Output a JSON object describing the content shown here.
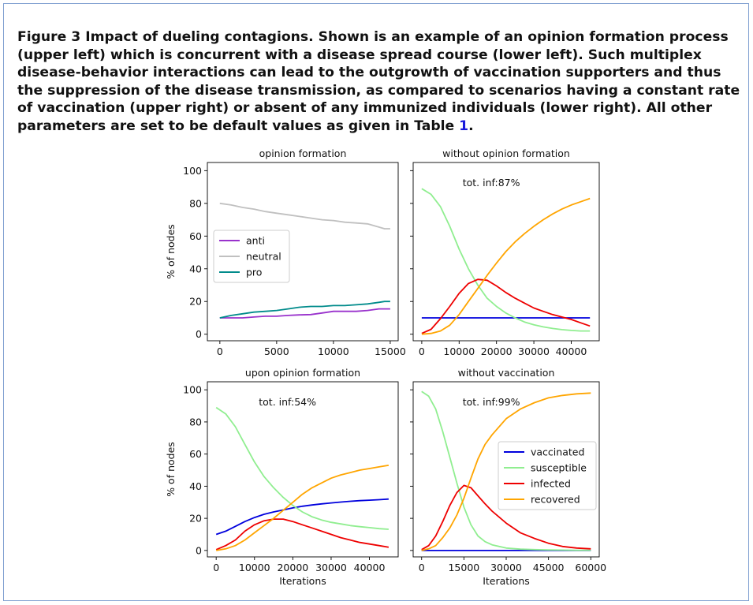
{
  "caption": {
    "prefix": "Figure 3 Impact of dueling contagions. Shown is an example of an opinion formation process (upper left) which is concurrent with a disease spread course (lower left). Such multiplex disease-behavior interactions can lead to the outgrowth of vaccination supporters and thus the suppression of the disease transmission, as compared to scenarios having a constant rate of vaccination (upper right) or absent of any immunized individuals (lower right). All other parameters are set to be default values as given in Table ",
    "ref": "1",
    "suffix": "."
  },
  "colors": {
    "anti": "#9932cc",
    "neutral": "#c0c0c0",
    "pro": "#008b8b",
    "vaccinated": "#0000dd",
    "susceptible": "#90ee90",
    "infected": "#ee0000",
    "recovered": "#ffa500"
  },
  "chart_data": [
    {
      "id": "tl",
      "type": "line",
      "title": "opinion formation",
      "xlabel": "",
      "ylabel": "% of nodes",
      "xlim": [
        -1100,
        15700
      ],
      "ylim": [
        -4,
        105
      ],
      "xticks": [
        0,
        5000,
        10000,
        15000
      ],
      "xtick_labels": [
        "0",
        "5000",
        "10000",
        "15000"
      ],
      "yticks": [
        0,
        20,
        40,
        60,
        80,
        100
      ],
      "ytick_labels": [
        "0",
        "20",
        "40",
        "60",
        "80",
        "100"
      ],
      "show_yticklabels": true,
      "annotation": "",
      "legend": {
        "position": "center-left",
        "entries": [
          "anti",
          "neutral",
          "pro"
        ]
      },
      "series": [
        {
          "name": "anti",
          "color_key": "anti",
          "x": [
            0,
            1000,
            2000,
            3000,
            4000,
            5000,
            6000,
            7000,
            8000,
            9000,
            10000,
            11000,
            12000,
            13000,
            14000,
            14500,
            15000
          ],
          "y": [
            10,
            10,
            10,
            10.5,
            11,
            11,
            11.5,
            11.8,
            12,
            13,
            14,
            14,
            14,
            14.5,
            15.5,
            15.5,
            15.5
          ]
        },
        {
          "name": "neutral",
          "color_key": "neutral",
          "x": [
            0,
            1000,
            2000,
            3000,
            4000,
            5000,
            6000,
            7000,
            8000,
            9000,
            10000,
            11000,
            12000,
            13000,
            14000,
            14500,
            15000
          ],
          "y": [
            80,
            79,
            77.5,
            76.5,
            75,
            74,
            73,
            72,
            71,
            70,
            69.5,
            68.5,
            68,
            67.5,
            65.5,
            64.5,
            64.5
          ]
        },
        {
          "name": "pro",
          "color_key": "pro",
          "x": [
            0,
            1000,
            2000,
            3000,
            4000,
            5000,
            6000,
            7000,
            8000,
            9000,
            10000,
            11000,
            12000,
            13000,
            14000,
            14500,
            15000
          ],
          "y": [
            10,
            11.5,
            12.5,
            13.5,
            14,
            14.5,
            15.5,
            16.5,
            17,
            17,
            17.5,
            17.5,
            18,
            18.5,
            19.5,
            20,
            20
          ]
        }
      ]
    },
    {
      "id": "tr",
      "type": "line",
      "title": "without opinion formation",
      "xlabel": "",
      "ylabel": "",
      "xlim": [
        -2300,
        47500
      ],
      "ylim": [
        -4,
        105
      ],
      "xticks": [
        0,
        10000,
        20000,
        30000,
        40000
      ],
      "xtick_labels": [
        "0",
        "10000",
        "20000",
        "30000",
        "40000"
      ],
      "yticks": [
        0,
        20,
        40,
        60,
        80,
        100
      ],
      "ytick_labels": [],
      "show_yticklabels": false,
      "annotation": "tot. inf:87%",
      "legend": null,
      "series": [
        {
          "name": "vaccinated",
          "color_key": "vaccinated",
          "x": [
            0,
            45000
          ],
          "y": [
            10,
            10
          ]
        },
        {
          "name": "susceptible",
          "color_key": "susceptible",
          "x": [
            0,
            2500,
            5000,
            7500,
            10000,
            12500,
            15000,
            17500,
            20000,
            22500,
            25000,
            27500,
            30000,
            32500,
            35000,
            37500,
            40000,
            42500,
            45000
          ],
          "y": [
            89,
            85.5,
            78,
            66,
            52,
            40,
            30,
            22,
            17,
            13,
            10,
            7.5,
            5.8,
            4.5,
            3.5,
            2.8,
            2.3,
            2,
            2
          ]
        },
        {
          "name": "infected",
          "color_key": "infected",
          "x": [
            0,
            2500,
            5000,
            7500,
            10000,
            12500,
            15000,
            17500,
            20000,
            22500,
            25000,
            27500,
            30000,
            32500,
            35000,
            37500,
            40000,
            42500,
            45000
          ],
          "y": [
            0.5,
            3,
            9.5,
            17,
            25,
            31,
            33.5,
            33,
            29.5,
            25.5,
            22,
            19,
            16,
            14,
            12,
            10.5,
            9,
            7,
            5
          ]
        },
        {
          "name": "recovered",
          "color_key": "recovered",
          "x": [
            0,
            2500,
            5000,
            7500,
            10000,
            12500,
            15000,
            17500,
            20000,
            22500,
            25000,
            27500,
            30000,
            32500,
            35000,
            37500,
            40000,
            42500,
            45000
          ],
          "y": [
            0,
            0.5,
            2,
            5.5,
            12,
            20,
            28,
            36,
            43.5,
            50.5,
            56.5,
            61.5,
            66,
            70,
            73.5,
            76.5,
            79,
            81,
            83
          ]
        }
      ]
    },
    {
      "id": "bl",
      "type": "line",
      "title": "upon opinion formation",
      "xlabel": "Iterations",
      "ylabel": "% of nodes",
      "xlim": [
        -2300,
        47500
      ],
      "ylim": [
        -4,
        105
      ],
      "xticks": [
        0,
        10000,
        20000,
        30000,
        40000
      ],
      "xtick_labels": [
        "0",
        "10000",
        "20000",
        "30000",
        "40000"
      ],
      "yticks": [
        0,
        20,
        40,
        60,
        80,
        100
      ],
      "ytick_labels": [
        "0",
        "20",
        "40",
        "60",
        "80",
        "100"
      ],
      "show_yticklabels": true,
      "annotation": "tot. inf:54%",
      "legend": null,
      "series": [
        {
          "name": "vaccinated",
          "color_key": "vaccinated",
          "x": [
            0,
            2500,
            5000,
            7500,
            10000,
            12500,
            15000,
            17500,
            20000,
            22500,
            25000,
            27500,
            30000,
            32500,
            35000,
            37500,
            40000,
            42500,
            45000
          ],
          "y": [
            10,
            12,
            15,
            18,
            20.5,
            22.5,
            24,
            25.2,
            26.5,
            27.5,
            28.3,
            29,
            29.6,
            30.1,
            30.6,
            31,
            31.3,
            31.6,
            32
          ]
        },
        {
          "name": "susceptible",
          "color_key": "susceptible",
          "x": [
            0,
            2500,
            5000,
            7500,
            10000,
            12500,
            15000,
            17500,
            20000,
            22500,
            25000,
            27500,
            30000,
            32500,
            35000,
            37500,
            40000,
            42500,
            45000
          ],
          "y": [
            89,
            85,
            77,
            66,
            55,
            46,
            39,
            33,
            28,
            24,
            21,
            19,
            17.5,
            16.5,
            15.5,
            14.8,
            14.2,
            13.6,
            13.2
          ]
        },
        {
          "name": "infected",
          "color_key": "infected",
          "x": [
            0,
            2500,
            5000,
            7500,
            10000,
            12500,
            15000,
            17500,
            20000,
            22500,
            25000,
            27500,
            30000,
            32500,
            35000,
            37500,
            40000,
            42500,
            45000
          ],
          "y": [
            0.5,
            3,
            6.5,
            12,
            16,
            18.5,
            19.5,
            19.5,
            18,
            16,
            14,
            12,
            10,
            8,
            6.5,
            5,
            4,
            3,
            2
          ]
        },
        {
          "name": "recovered",
          "color_key": "recovered",
          "x": [
            0,
            2500,
            5000,
            7500,
            10000,
            12500,
            15000,
            17500,
            20000,
            22500,
            25000,
            27500,
            30000,
            32500,
            35000,
            37500,
            40000,
            42500,
            45000
          ],
          "y": [
            0,
            1,
            3,
            6.5,
            11,
            15.5,
            20,
            25,
            30,
            35,
            39,
            42,
            45,
            47,
            48.5,
            50,
            51,
            52,
            53
          ]
        }
      ]
    },
    {
      "id": "br",
      "type": "line",
      "title": "without vaccination",
      "xlabel": "Iterations",
      "ylabel": "",
      "xlim": [
        -3000,
        63000
      ],
      "ylim": [
        -4,
        105
      ],
      "xticks": [
        0,
        15000,
        30000,
        45000,
        60000
      ],
      "xtick_labels": [
        "0",
        "15000",
        "30000",
        "45000",
        "60000"
      ],
      "yticks": [
        0,
        20,
        40,
        60,
        80,
        100
      ],
      "ytick_labels": [],
      "show_yticklabels": false,
      "annotation": "tot. inf:99%",
      "legend": {
        "position": "center-right",
        "entries": [
          "vaccinated",
          "susceptible",
          "infected",
          "recovered"
        ]
      },
      "series": [
        {
          "name": "vaccinated",
          "color_key": "vaccinated",
          "x": [
            0,
            60000
          ],
          "y": [
            0,
            0
          ]
        },
        {
          "name": "susceptible",
          "color_key": "susceptible",
          "x": [
            0,
            2500,
            5000,
            7500,
            10000,
            12500,
            15000,
            17500,
            20000,
            22500,
            25000,
            30000,
            35000,
            40000,
            45000,
            50000,
            55000,
            60000
          ],
          "y": [
            99,
            96,
            88,
            74,
            58,
            42,
            27,
            16,
            9,
            5.5,
            3.5,
            1.5,
            0.8,
            0.5,
            0.3,
            0.2,
            0.1,
            0.1
          ]
        },
        {
          "name": "infected",
          "color_key": "infected",
          "x": [
            0,
            2500,
            5000,
            7500,
            10000,
            12500,
            15000,
            17500,
            20000,
            22500,
            25000,
            30000,
            35000,
            40000,
            45000,
            50000,
            55000,
            60000
          ],
          "y": [
            0.5,
            3,
            9,
            18,
            28,
            36,
            40.5,
            39,
            34,
            29,
            24.5,
            17,
            11,
            7.5,
            4.5,
            2.5,
            1.5,
            1
          ]
        },
        {
          "name": "recovered",
          "color_key": "recovered",
          "x": [
            0,
            2500,
            5000,
            7500,
            10000,
            12500,
            15000,
            17500,
            20000,
            22500,
            25000,
            30000,
            35000,
            40000,
            45000,
            50000,
            55000,
            60000
          ],
          "y": [
            0,
            1,
            3,
            8,
            14,
            22,
            32.5,
            45,
            57,
            66,
            72,
            82,
            88,
            92,
            95,
            96.5,
            97.5,
            98
          ]
        }
      ]
    }
  ]
}
